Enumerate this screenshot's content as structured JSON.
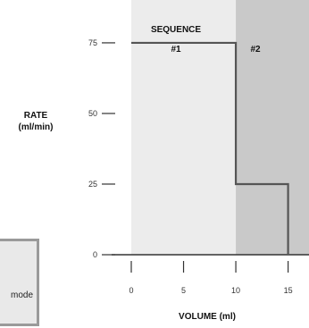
{
  "chart_data": {
    "type": "line",
    "title": "",
    "xlabel": "VOLUME (ml)",
    "ylabel_line1": "RATE",
    "ylabel_line2": "(ml/min)",
    "xlim": [
      0,
      17
    ],
    "ylim": [
      0,
      87
    ],
    "x_ticks": [
      0,
      5,
      10,
      15
    ],
    "x_tick_labels": [
      "0",
      "5",
      "10",
      "15"
    ],
    "y_ticks": [
      0,
      25,
      50,
      75
    ],
    "y_tick_labels": [
      "0",
      "25",
      "50",
      "75"
    ],
    "series": [
      {
        "x": [
          0,
          10,
          10,
          15,
          15
        ],
        "y": [
          75,
          75,
          25,
          25,
          0
        ]
      }
    ],
    "regions": [
      {
        "label_line1": "SEQUENCE",
        "label_line2": "#1",
        "x_start": 0,
        "x_end": 10,
        "color": "#ececec"
      },
      {
        "label_line1": "#2",
        "label_line2": "",
        "x_start": 10,
        "x_end": 17,
        "color": "#c9c9c9"
      }
    ]
  },
  "mode_panel": {
    "text": "mode"
  },
  "colors": {
    "line": "#555555",
    "axis": "#333333",
    "panel_border": "#9a9a9a"
  }
}
